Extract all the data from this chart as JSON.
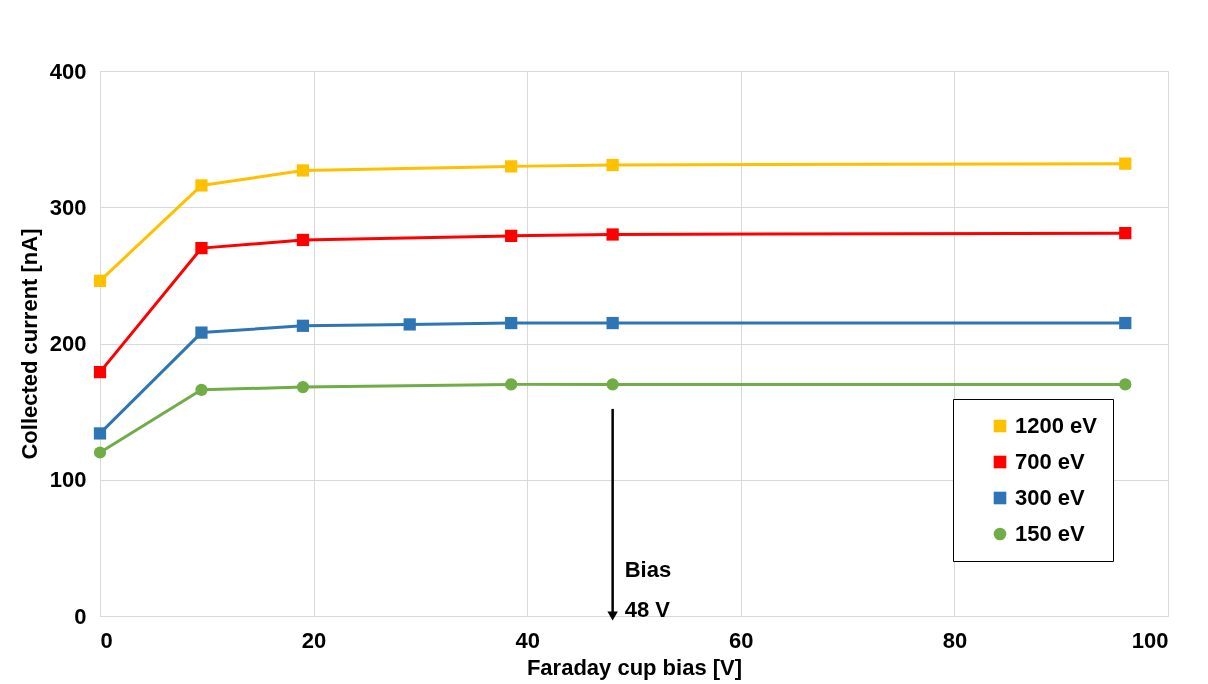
{
  "chart_data": {
    "type": "line",
    "xlabel": "Faraday cup bias [V]",
    "ylabel": "Collected current [nA]",
    "x": [
      0,
      9.5,
      19,
      38.5,
      48,
      96
    ],
    "series": [
      {
        "name": "1200 eV",
        "color": "#ffc000",
        "marker": "square",
        "values": [
          246,
          316,
          327,
          330,
          331,
          332
        ]
      },
      {
        "name": "700 eV",
        "color": "#ff0000",
        "marker": "square",
        "values": [
          179,
          270,
          276,
          279,
          280,
          281
        ]
      },
      {
        "name": "300 eV",
        "color": "#2e75b6",
        "marker": "square",
        "x": [
          0,
          9.5,
          19,
          29,
          38.5,
          48,
          96
        ],
        "values": [
          134,
          208,
          213,
          214,
          215,
          215,
          215
        ]
      },
      {
        "name": "150 eV",
        "color": "#70ad47",
        "marker": "circle",
        "values": [
          120,
          166,
          168,
          170,
          170,
          170
        ]
      }
    ],
    "xlim": [
      0,
      100
    ],
    "xticks": [
      0,
      20,
      40,
      60,
      80,
      100
    ],
    "ylim": [
      0,
      400
    ],
    "yticks": [
      0,
      100,
      200,
      300,
      400
    ],
    "grid": true,
    "legend": "bottom right",
    "line_style": "solid",
    "annotations": [
      {
        "text": "Bias\n48 V",
        "x": 48,
        "y": 0
      }
    ]
  }
}
